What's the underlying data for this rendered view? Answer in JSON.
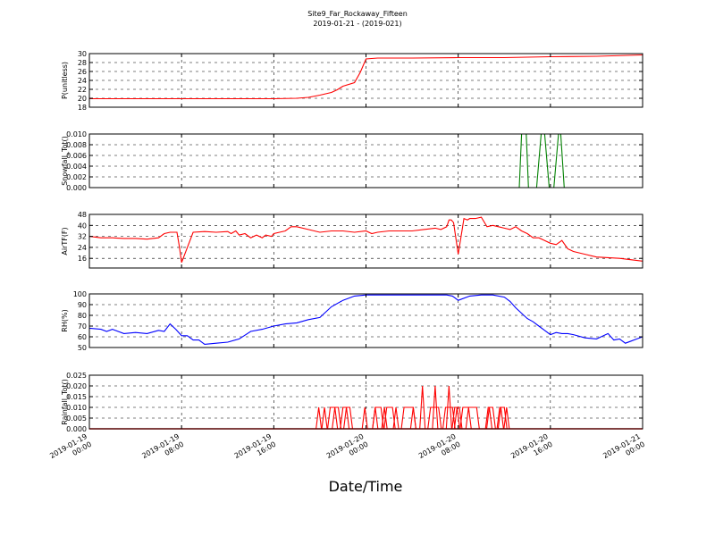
{
  "chart_data": {
    "type": "line",
    "title": "Site9_Far_Rockaway_Fifteen",
    "subtitle": "2019-01-21 - (2019-021)",
    "xlabel": "Date/Time",
    "x_range_hours": [
      0,
      48
    ],
    "x_ticks": [
      {
        "h": 0,
        "d": "2019-01-19",
        "t": "00:00"
      },
      {
        "h": 8,
        "d": "2019-01-19",
        "t": "08:00"
      },
      {
        "h": 16,
        "d": "2019-01-19",
        "t": "16:00"
      },
      {
        "h": 24,
        "d": "2019-01-20",
        "t": "00:00"
      },
      {
        "h": 32,
        "d": "2019-01-20",
        "t": "08:00"
      },
      {
        "h": 40,
        "d": "2019-01-20",
        "t": "16:00"
      },
      {
        "h": 48,
        "d": "2019-01-21",
        "t": "00:00"
      }
    ],
    "panels": [
      {
        "ylabel": "P(unitless)",
        "color": "#ff0000",
        "ylim": [
          18,
          30
        ],
        "yticks": [
          "18",
          "20",
          "22",
          "24",
          "26",
          "28",
          "30"
        ],
        "x": [
          0,
          8,
          16,
          18,
          19,
          20,
          21,
          21.5,
          22,
          23,
          23.5,
          24,
          25,
          28,
          32,
          36,
          40,
          44,
          48
        ],
        "y": [
          19.9,
          19.9,
          19.9,
          20,
          20.2,
          20.7,
          21.3,
          21.9,
          22.7,
          23.5,
          25.8,
          28.8,
          29,
          29,
          29.1,
          29.1,
          29.3,
          29.4,
          29.7
        ]
      },
      {
        "ylabel": "Snowfall_Tot()",
        "color": "#008000",
        "ylim": [
          0,
          0.01
        ],
        "yticks": [
          "0.000",
          "0.002",
          "0.004",
          "0.006",
          "0.008",
          "0.010"
        ],
        "x": [
          0,
          37.3,
          37.5,
          37.9,
          38.1,
          38.5,
          38.8,
          39.2,
          39.5,
          39.9,
          40.3,
          40.7,
          40.9,
          41.2,
          48
        ],
        "y": [
          0,
          0,
          0.01,
          0.01,
          0,
          0,
          0,
          0.01,
          0.01,
          0,
          0,
          0.01,
          0.01,
          0,
          0
        ]
      },
      {
        "ylabel": "AirTF(F)",
        "color": "#ff0000",
        "ylim": [
          9,
          48
        ],
        "yticks": [
          "16",
          "24",
          "32",
          "40",
          "48"
        ],
        "x": [
          0,
          1,
          2,
          3,
          4,
          5,
          6,
          6.5,
          7,
          7.6,
          7.8,
          8,
          9,
          10,
          11,
          12,
          12.3,
          12.7,
          13,
          13.5,
          14,
          14.5,
          15,
          15.3,
          15.8,
          16,
          16.5,
          17,
          17.5,
          18,
          19,
          20,
          21,
          22,
          23,
          24,
          24.5,
          25,
          26,
          27,
          28,
          29,
          30,
          30.5,
          31,
          31.2,
          31.4,
          31.6,
          32,
          32.5,
          32.8,
          33,
          33.5,
          34,
          34.5,
          35,
          35.5,
          36,
          36.5,
          37,
          37.5,
          38,
          38.5,
          39,
          39.5,
          40,
          40.5,
          41,
          41.5,
          42,
          43,
          44,
          46,
          48
        ],
        "y": [
          32,
          31,
          31,
          30.5,
          30.5,
          30,
          31,
          34,
          35,
          35,
          25,
          13,
          35,
          35.5,
          35,
          35.5,
          34,
          36,
          33,
          34,
          31,
          33,
          31,
          33,
          32,
          34,
          35,
          36,
          39,
          39,
          37,
          35,
          36,
          36,
          35,
          36,
          34,
          35,
          36,
          36,
          36,
          37,
          38,
          37,
          39,
          44,
          44,
          42,
          19,
          45,
          44,
          45,
          45,
          46,
          39,
          40,
          39,
          38,
          37,
          39,
          36,
          34,
          31,
          31,
          29,
          27,
          26,
          29,
          23,
          21,
          19,
          17,
          16,
          14
        ]
      },
      {
        "ylabel": "RH(%)",
        "color": "#0000ff",
        "ylim": [
          50,
          100
        ],
        "yticks": [
          "50",
          "60",
          "70",
          "80",
          "90",
          "100"
        ],
        "x": [
          0,
          1,
          1.5,
          2,
          3,
          4,
          5,
          6,
          6.5,
          7,
          7.5,
          8,
          8.5,
          9,
          9.5,
          10,
          11,
          12,
          13,
          14,
          15,
          16,
          17,
          18,
          19,
          20,
          21,
          22,
          23,
          24,
          25,
          26,
          27,
          28,
          29,
          30,
          31,
          31.5,
          32,
          33,
          34,
          35,
          36,
          36.5,
          37,
          38,
          38.5,
          39,
          39.5,
          40,
          40.5,
          41,
          41.5,
          42,
          43,
          44,
          45,
          45.5,
          46,
          46.5,
          47,
          47.5,
          48
        ],
        "y": [
          68,
          67,
          65,
          67,
          63,
          64,
          63,
          66,
          65,
          72,
          67,
          61,
          61,
          57,
          57,
          53,
          54,
          55,
          58,
          65,
          67,
          70,
          72,
          73,
          76,
          78,
          88,
          94,
          98,
          99,
          99,
          99,
          99,
          99,
          99,
          99,
          99,
          98,
          94,
          98,
          99,
          99,
          97,
          93,
          87,
          77,
          74,
          70,
          66,
          62,
          64,
          63,
          63,
          62,
          59,
          58,
          63,
          57,
          58,
          54,
          56,
          58,
          60
        ]
      },
      {
        "ylabel": "Rainfall_Tot()",
        "color": "#ff0000",
        "ylim": [
          0,
          0.025
        ],
        "yticks": [
          "0.000",
          "0.005",
          "0.010",
          "0.015",
          "0.020",
          "0.025"
        ],
        "spikes": [
          [
            19.9,
            0.01
          ],
          [
            20.4,
            0.01
          ],
          [
            21.3,
            0.01
          ],
          [
            22.3,
            0.01
          ],
          [
            23.9,
            0.01
          ],
          [
            24.8,
            0.01
          ],
          [
            25.6,
            0.01
          ],
          [
            26.6,
            0.01
          ],
          [
            28.1,
            0.01
          ],
          [
            28.9,
            0.02
          ],
          [
            30.0,
            0.02
          ],
          [
            31.2,
            0.02
          ],
          [
            31.9,
            0.01
          ],
          [
            32.9,
            0.01
          ],
          [
            34.7,
            0.01
          ],
          [
            35.7,
            0.01
          ],
          [
            36.2,
            0.01
          ]
        ],
        "flats": [
          [
            20.9,
            21.6
          ],
          [
            22.0,
            22.6
          ],
          [
            24.8,
            25.3
          ],
          [
            25.8,
            26.3
          ],
          [
            27.3,
            28.1
          ],
          [
            29.6,
            30.3
          ],
          [
            30.9,
            31.5
          ],
          [
            31.7,
            32.1
          ],
          [
            32.4,
            33.6
          ],
          [
            34.6,
            35.0
          ],
          [
            35.6,
            36.0
          ]
        ],
        "flat_value": 0.01
      }
    ]
  }
}
